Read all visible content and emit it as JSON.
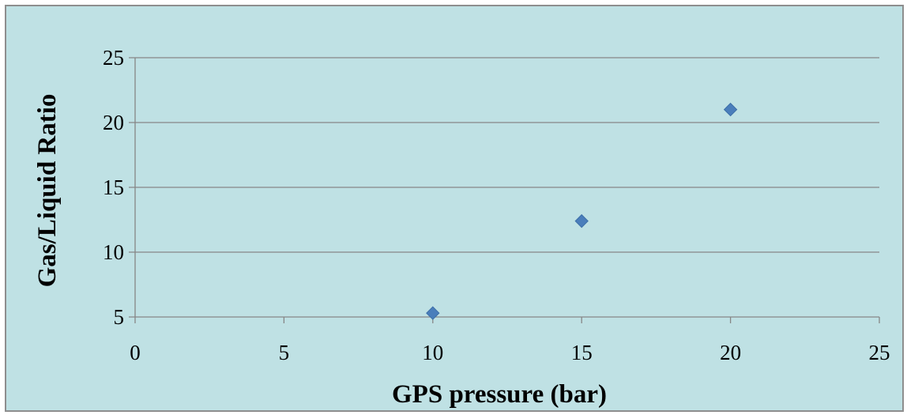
{
  "chart_data": {
    "type": "scatter",
    "title": "",
    "xlabel": "GPS pressure (bar)",
    "ylabel": "Gas/Liquid Ratio",
    "xlim": [
      0,
      25
    ],
    "ylim": [
      5,
      25
    ],
    "xticks": [
      0,
      5,
      10,
      15,
      20,
      25
    ],
    "yticks": [
      5,
      10,
      15,
      20,
      25
    ],
    "grid": "horizontal",
    "legend": "none",
    "background_color": "#bfe1e4",
    "marker": "diamond",
    "series": [
      {
        "color": "#4a7ebb",
        "points": [
          {
            "x": 10,
            "y": 5.3
          },
          {
            "x": 15,
            "y": 12.4
          },
          {
            "x": 20,
            "y": 21.0
          }
        ]
      }
    ]
  }
}
